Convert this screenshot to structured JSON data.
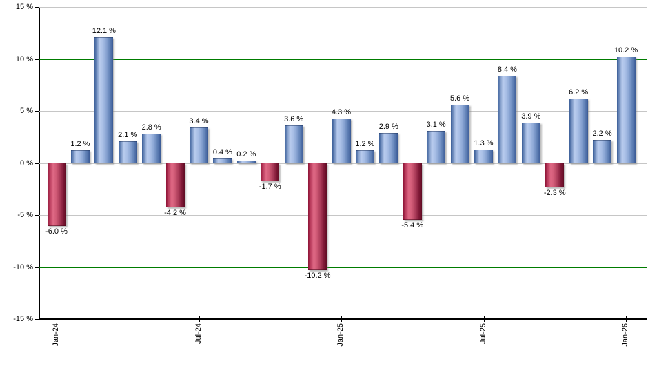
{
  "chart_data": {
    "type": "bar",
    "title": "",
    "description": "Monthly returns bar chart, Jan-24 through Jan-26",
    "values": [
      -6.0,
      1.2,
      12.1,
      2.1,
      2.8,
      -4.2,
      3.4,
      0.4,
      0.2,
      -1.7,
      3.6,
      -10.2,
      4.3,
      1.2,
      2.9,
      -5.4,
      3.1,
      5.6,
      1.3,
      8.4,
      3.9,
      -2.3,
      6.2,
      2.2,
      10.2
    ],
    "bar_labels": [
      "-6.0 %",
      "1.2 %",
      "12.1 %",
      "2.1 %",
      "2.8 %",
      "-4.2 %",
      "3.4 %",
      "0.4 %",
      "0.2 %",
      "-1.7 %",
      "3.6 %",
      "-10.2 %",
      "4.3 %",
      "1.2 %",
      "2.9 %",
      "-5.4 %",
      "3.1 %",
      "5.6 %",
      "1.3 %",
      "8.4 %",
      "3.9 %",
      "-2.3 %",
      "6.2 %",
      "2.2 %",
      "10.2 %"
    ],
    "bar_count": 25,
    "y_axis": {
      "tick_labels": [
        "15 %",
        "10 %",
        "5 %",
        "0 %",
        "-5 %",
        "-10 %",
        "-15 %"
      ],
      "tick_values": [
        15,
        10,
        5,
        0,
        -5,
        -10,
        -15
      ],
      "green_line_values": [
        10,
        -10
      ],
      "ylim": [
        -15,
        15
      ],
      "grid": true
    },
    "x_axis": {
      "tick_labels": [
        {
          "index": 0,
          "label": "Jan-24"
        },
        {
          "index": 6,
          "label": "Jul-24"
        },
        {
          "index": 12,
          "label": "Jan-25"
        },
        {
          "index": 18,
          "label": "Jul-25"
        },
        {
          "index": 24,
          "label": "Jan-26"
        }
      ]
    },
    "colors": {
      "positive_bar": "#7b98c8",
      "negative_bar": "#c04a68",
      "grid_green": "#007c00",
      "grid_gray": "#c6c6c6",
      "axis": "#000000",
      "background": "#ffffff",
      "label_text": "#000000"
    },
    "legend": null
  }
}
